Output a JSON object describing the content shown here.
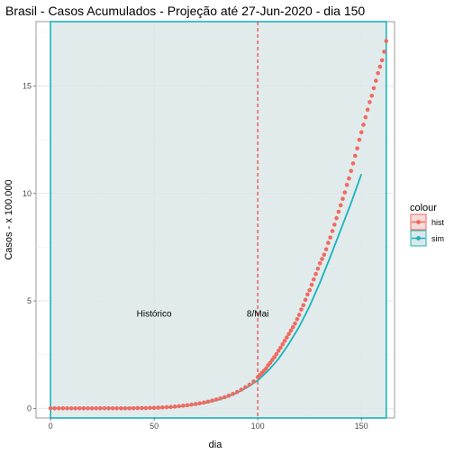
{
  "chart_data": {
    "type": "scatter",
    "title": "Brasil - Casos Acumulados - Projeção até 27-Jun-2020 - dia 150",
    "xlabel": "dia",
    "ylabel": "Casos - x 100.000",
    "xlim": [
      -7,
      166
    ],
    "ylim": [
      -0.45,
      18.0
    ],
    "x_ticks": [
      0,
      50,
      100,
      150
    ],
    "y_ticks": [
      0,
      5,
      10,
      15
    ],
    "grid": true,
    "vline": {
      "x": 100,
      "style": "dashed",
      "color": "#f04a4a"
    },
    "shaded_region": {
      "x": [
        0,
        162
      ],
      "fill": "#dce8e8",
      "border": "#1ab3bb"
    },
    "annotations": [
      {
        "text": "Histórico",
        "x": 50,
        "y": 4.4
      },
      {
        "text": "8/Mai",
        "x": 100,
        "y": 4.4
      }
    ],
    "legend": {
      "title": "colour",
      "position": "right",
      "entries": [
        {
          "name": "hist",
          "color": "#f06a61"
        },
        {
          "name": "sim",
          "color": "#1ab3bb"
        }
      ]
    },
    "series": [
      {
        "name": "hist",
        "type": "scatter",
        "color": "#f06a61",
        "x": [
          0,
          2,
          4,
          6,
          8,
          10,
          12,
          14,
          16,
          18,
          20,
          22,
          24,
          26,
          28,
          30,
          32,
          34,
          36,
          38,
          40,
          42,
          44,
          46,
          48,
          50,
          52,
          54,
          56,
          58,
          60,
          62,
          64,
          66,
          68,
          70,
          72,
          74,
          76,
          78,
          80,
          82,
          84,
          86,
          88,
          90,
          92,
          94,
          96,
          98,
          100,
          101,
          102,
          103,
          104,
          105,
          106,
          107,
          108,
          109,
          110,
          111,
          112,
          113,
          114,
          115,
          116,
          117,
          118,
          119,
          120,
          121,
          122,
          123,
          124,
          125,
          126,
          127,
          128,
          129,
          130,
          131,
          132,
          133,
          134,
          135,
          136,
          137,
          138,
          139,
          140,
          141,
          142,
          143,
          144,
          145,
          146,
          147,
          148,
          149,
          150,
          151,
          152,
          153,
          154,
          155,
          156,
          157,
          158,
          159,
          160,
          161,
          162
        ],
        "y": [
          0.0,
          0.0,
          0.0,
          0.0,
          0.0,
          0.0,
          0.0,
          0.0,
          0.0,
          0.0,
          0.0,
          0.0,
          0.0,
          0.0,
          0.0,
          0.0,
          0.0,
          0.0,
          0.0,
          0.0,
          0.0,
          0.01,
          0.01,
          0.01,
          0.02,
          0.02,
          0.03,
          0.04,
          0.05,
          0.06,
          0.08,
          0.1,
          0.12,
          0.14,
          0.17,
          0.2,
          0.23,
          0.27,
          0.31,
          0.36,
          0.41,
          0.46,
          0.52,
          0.59,
          0.67,
          0.76,
          0.87,
          0.98,
          1.1,
          1.25,
          1.45,
          1.55,
          1.65,
          1.75,
          1.85,
          2.0,
          2.12,
          2.25,
          2.38,
          2.52,
          2.68,
          2.82,
          2.98,
          3.14,
          3.3,
          3.46,
          3.62,
          3.78,
          3.95,
          4.15,
          4.35,
          4.6,
          4.8,
          5.05,
          5.3,
          5.5,
          5.75,
          6.0,
          6.25,
          6.5,
          6.75,
          6.95,
          7.15,
          7.4,
          7.7,
          7.95,
          8.25,
          8.55,
          8.85,
          9.15,
          9.45,
          9.75,
          10.05,
          10.4,
          10.7,
          11.05,
          11.4,
          11.75,
          12.1,
          12.5,
          12.85,
          13.2,
          13.55,
          13.9,
          14.25,
          14.55,
          14.9,
          15.25,
          15.6,
          15.9,
          16.2,
          16.6,
          17.1
        ]
      },
      {
        "name": "sim",
        "type": "line",
        "color": "#1ab3bb",
        "x": [
          0,
          10,
          20,
          30,
          40,
          50,
          60,
          70,
          75,
          80,
          85,
          90,
          95,
          100,
          105,
          110,
          115,
          120,
          125,
          130,
          135,
          140,
          145,
          150
        ],
        "y": [
          0.0,
          0.0,
          0.0,
          0.0,
          0.01,
          0.02,
          0.06,
          0.18,
          0.26,
          0.37,
          0.52,
          0.72,
          0.98,
          1.3,
          1.75,
          2.3,
          3.0,
          3.8,
          4.75,
          5.85,
          7.05,
          8.3,
          9.55,
          10.9
        ]
      }
    ]
  }
}
